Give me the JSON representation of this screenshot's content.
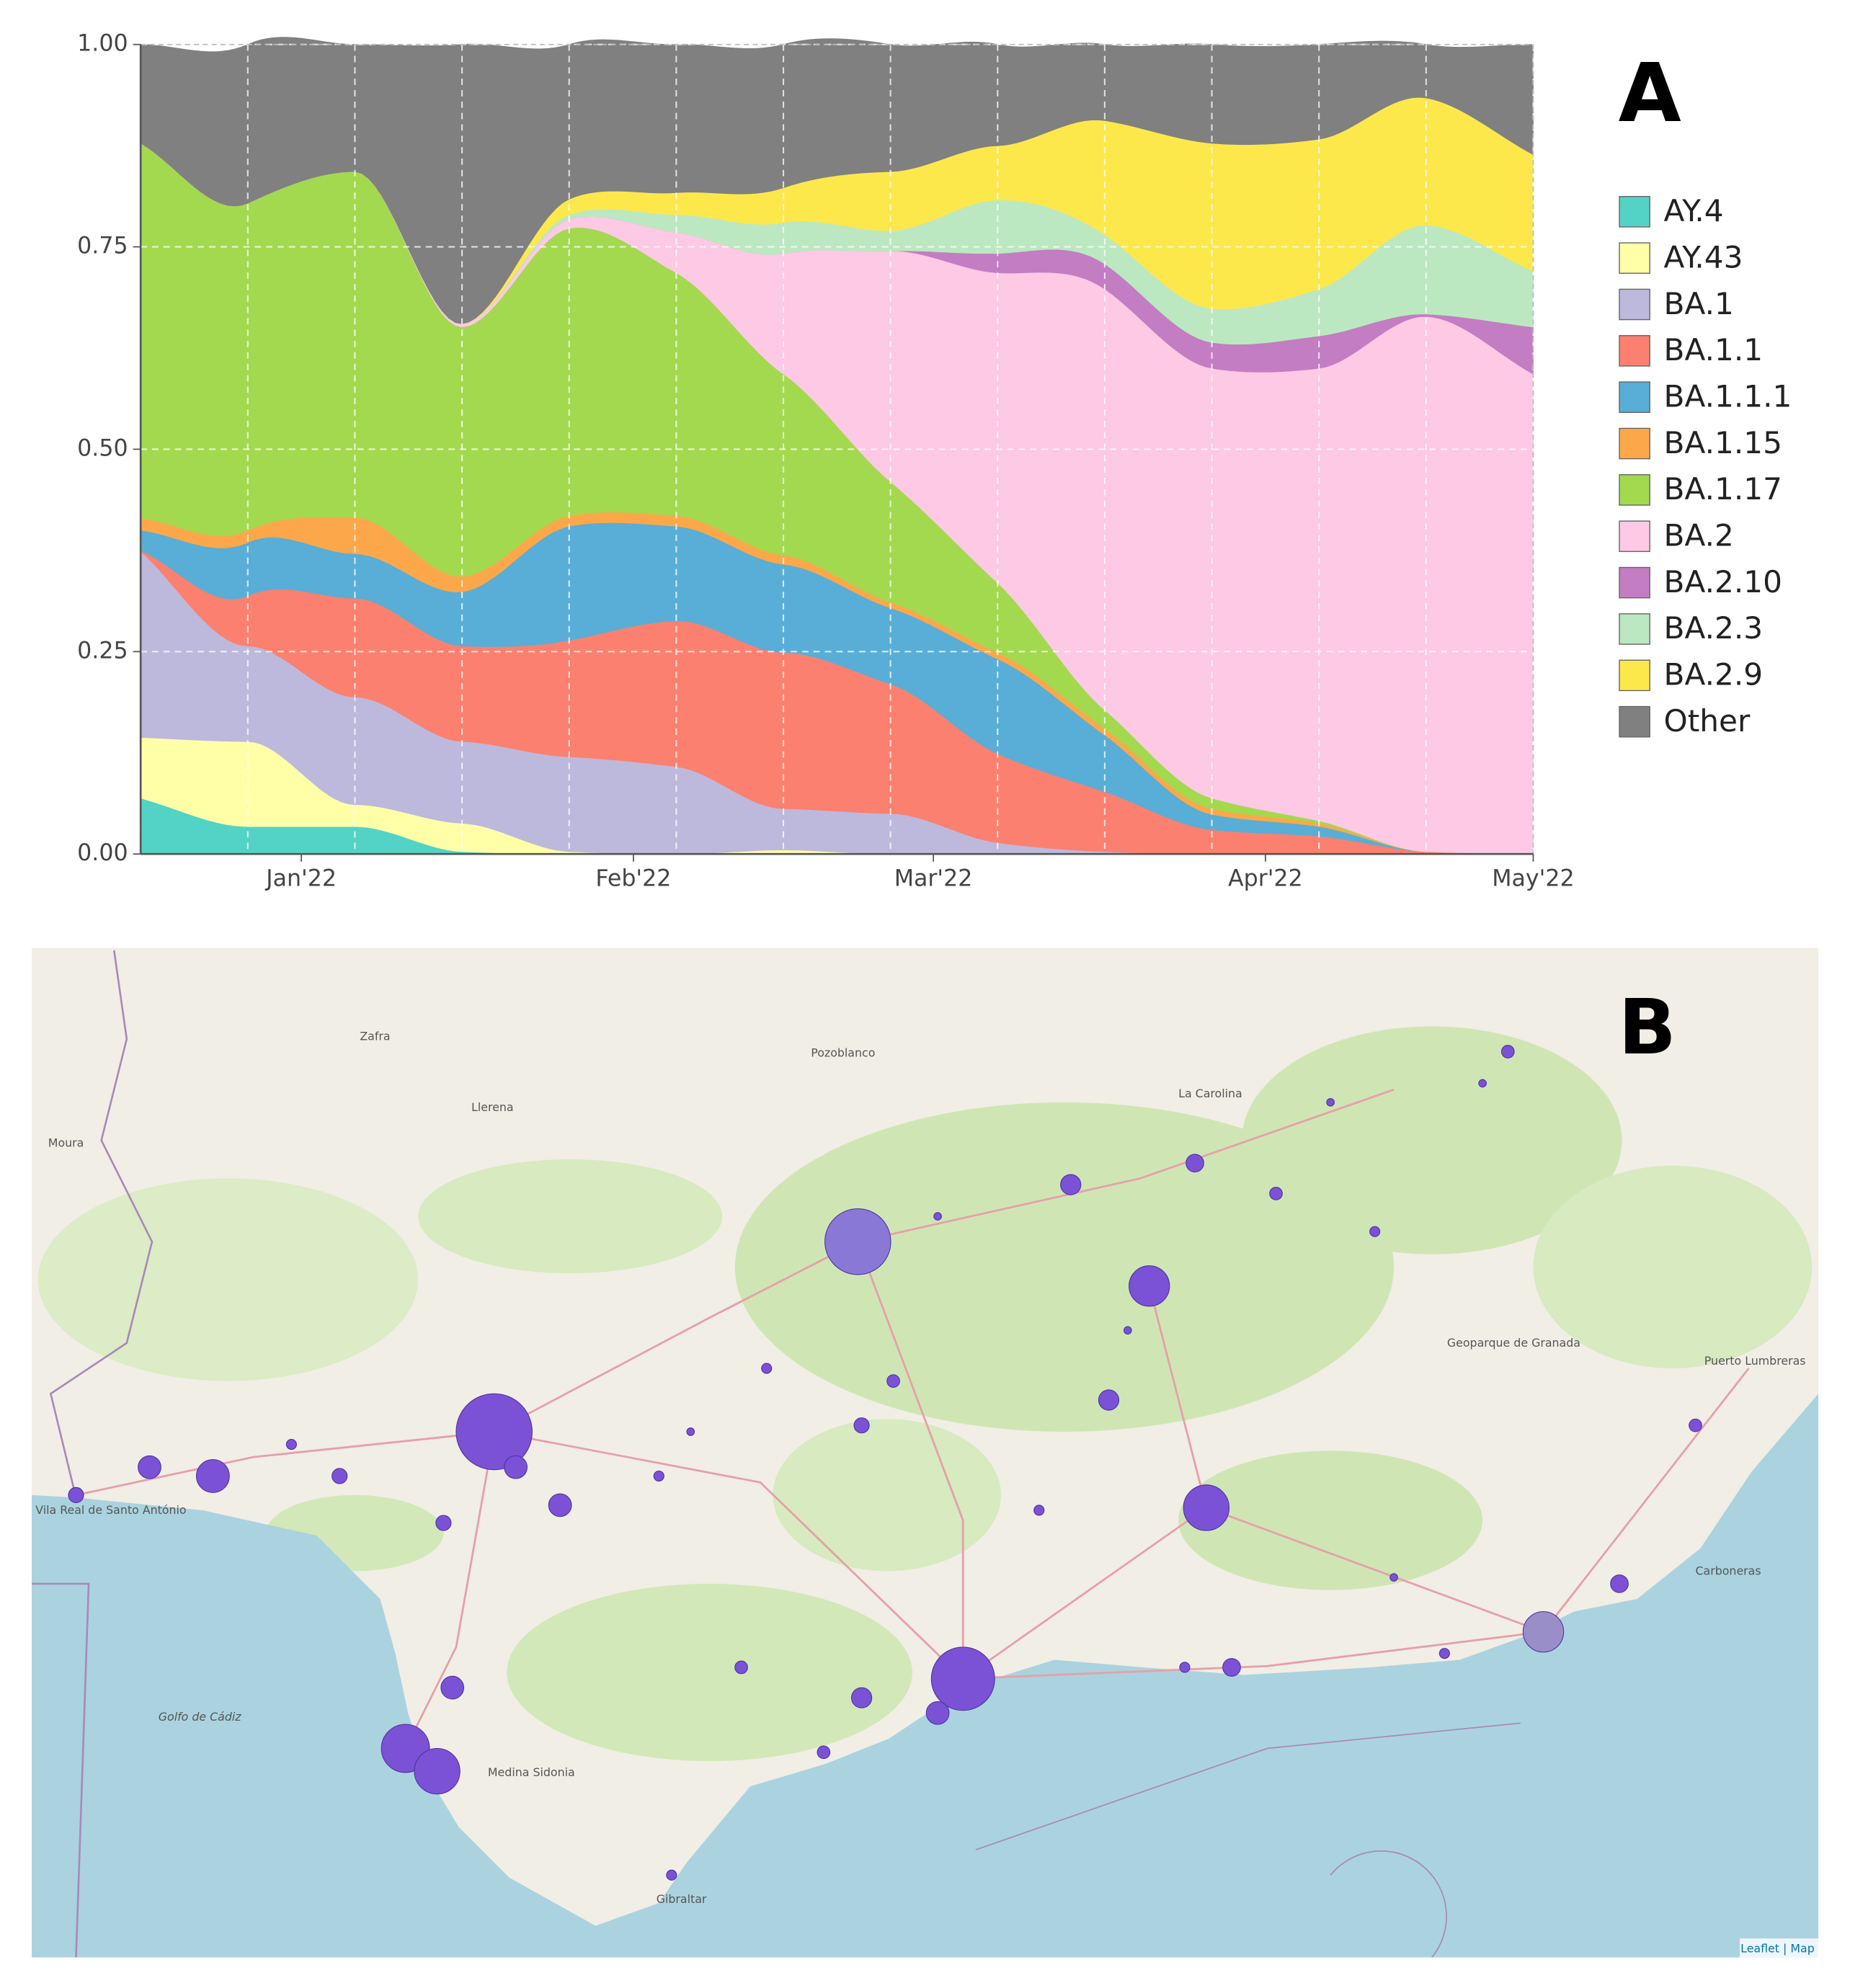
{
  "chart_data": {
    "type": "stacked_area",
    "panel_label": "A",
    "x": [
      0,
      1,
      2,
      3,
      4,
      5,
      6,
      7,
      8,
      9,
      10,
      11,
      12,
      13
    ],
    "xlim": [
      0,
      13
    ],
    "xticks": [
      {
        "value": 1.5,
        "label": "Jan'22"
      },
      {
        "value": 4.6,
        "label": "Feb'22"
      },
      {
        "value": 7.4,
        "label": "Mar'22"
      },
      {
        "value": 10.5,
        "label": "Apr'22"
      },
      {
        "value": 13,
        "label": "May'22"
      }
    ],
    "ylim": [
      0,
      1
    ],
    "yticks": [
      {
        "value": 0,
        "label": "0.00"
      },
      {
        "value": 0.25,
        "label": "0.25"
      },
      {
        "value": 0.5,
        "label": "0.50"
      },
      {
        "value": 0.75,
        "label": "0.75"
      },
      {
        "value": 1,
        "label": "1.00"
      }
    ],
    "grid": true,
    "legend": "right",
    "series": [
      {
        "name": "AY.4",
        "color": "#52d3c6",
        "values": [
          0.069,
          0.034,
          0.034,
          0.003,
          0,
          0,
          0,
          0,
          0,
          0,
          0,
          0,
          0,
          0
        ]
      },
      {
        "name": "AY.43",
        "color": "#ffffa8",
        "values": [
          0.075,
          0.105,
          0.027,
          0.035,
          0.003,
          0,
          0.005,
          0,
          0,
          0,
          0,
          0,
          0,
          0
        ]
      },
      {
        "name": "BA.1",
        "color": "#bdb9dc",
        "values": [
          0.23,
          0.118,
          0.133,
          0.101,
          0.117,
          0.108,
          0.051,
          0.05,
          0.014,
          0.003,
          0,
          0,
          0,
          0
        ]
      },
      {
        "name": "BA.1.1",
        "color": "#fb806f",
        "values": [
          0.001,
          0.062,
          0.122,
          0.118,
          0.144,
          0.18,
          0.193,
          0.16,
          0.11,
          0.074,
          0.03,
          0.022,
          0.003,
          0
        ]
      },
      {
        "name": "BA.1.1.1",
        "color": "#58aed6",
        "values": [
          0.025,
          0.066,
          0.055,
          0.067,
          0.141,
          0.117,
          0.109,
          0.094,
          0.117,
          0.07,
          0.019,
          0.012,
          0,
          0
        ]
      },
      {
        "name": "BA.1.15",
        "color": "#fca84a",
        "values": [
          0.015,
          0.015,
          0.045,
          0.019,
          0.013,
          0.013,
          0.011,
          0.007,
          0.008,
          0.008,
          0.007,
          0.004,
          0,
          0
        ]
      },
      {
        "name": "BA.1.17",
        "color": "#a3d94f",
        "values": [
          0.463,
          0.404,
          0.427,
          0.308,
          0.355,
          0.3,
          0.224,
          0.149,
          0.086,
          0.023,
          0.013,
          0.003,
          0,
          0
        ]
      },
      {
        "name": "BA.2",
        "color": "#fdc9e4",
        "values": [
          0,
          0,
          0,
          0.004,
          0.011,
          0.05,
          0.149,
          0.285,
          0.383,
          0.52,
          0.531,
          0.559,
          0.661,
          0.593
        ]
      },
      {
        "name": "BA.2.10",
        "color": "#c37dc2",
        "values": [
          0,
          0,
          0,
          0,
          0,
          0,
          0,
          0,
          0.024,
          0.031,
          0.032,
          0.04,
          0.003,
          0.058
        ]
      },
      {
        "name": "BA.2.3",
        "color": "#bce8c1",
        "values": [
          0,
          0,
          0,
          0,
          0.006,
          0.022,
          0.038,
          0.025,
          0.066,
          0.036,
          0.042,
          0.058,
          0.11,
          0.069
        ]
      },
      {
        "name": "BA.2.9",
        "color": "#fde84c",
        "values": [
          0,
          0,
          0,
          0,
          0.019,
          0.027,
          0.043,
          0.073,
          0.067,
          0.141,
          0.204,
          0.185,
          0.157,
          0.144
        ]
      },
      {
        "name": "Other",
        "color": "#808080",
        "values": [
          0.122,
          0.196,
          0.157,
          0.345,
          0.191,
          0.183,
          0.177,
          0.157,
          0.125,
          0.094,
          0.122,
          0.117,
          0.066,
          0.136
        ]
      }
    ]
  },
  "map": {
    "panel_label": "B",
    "labels": [
      "Golfo de Cádiz",
      "Geoparque de Granada",
      "Gibraltar",
      "Moura",
      "Llerena",
      "Zafra",
      "Pozoblanco",
      "La Carolina",
      "Puerto Lumbreras",
      "Carboneras",
      "Medina Sidonia",
      "Vila Real de Santo António"
    ],
    "attribution": "Leaflet | Map"
  }
}
